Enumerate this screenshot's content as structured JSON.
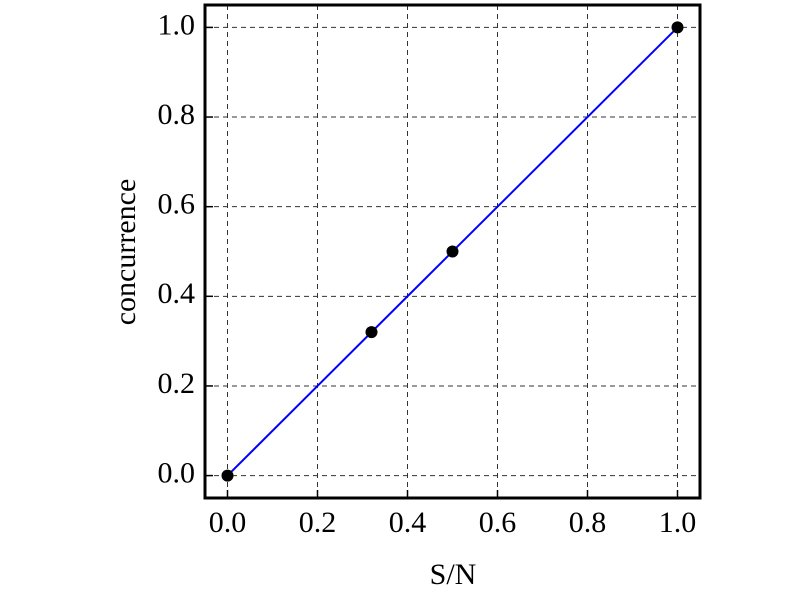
{
  "chart_data": {
    "type": "line",
    "x_label": "S/N",
    "y_label": "concurrence",
    "xlim": [
      -0.05,
      1.05
    ],
    "ylim": [
      -0.05,
      1.05
    ],
    "xticks": [
      {
        "value": 0,
        "label": "0.0"
      },
      0.2,
      0.4,
      0.6,
      0.8,
      {
        "value": 1,
        "label": "1.0"
      }
    ],
    "yticks": [
      {
        "value": 0,
        "label": "0.0"
      },
      0.2,
      0.4,
      0.6,
      0.8,
      {
        "value": 1,
        "label": "1.0"
      }
    ],
    "grid": true,
    "series": [
      {
        "style": "line",
        "color": "#0000ff",
        "x": [
          0,
          1
        ],
        "values": [
          0,
          1
        ]
      },
      {
        "style": "markers",
        "color": "#000000",
        "x": [
          0,
          0.32,
          0.5,
          1
        ],
        "values": [
          0,
          0.32,
          0.5,
          1
        ]
      }
    ]
  }
}
